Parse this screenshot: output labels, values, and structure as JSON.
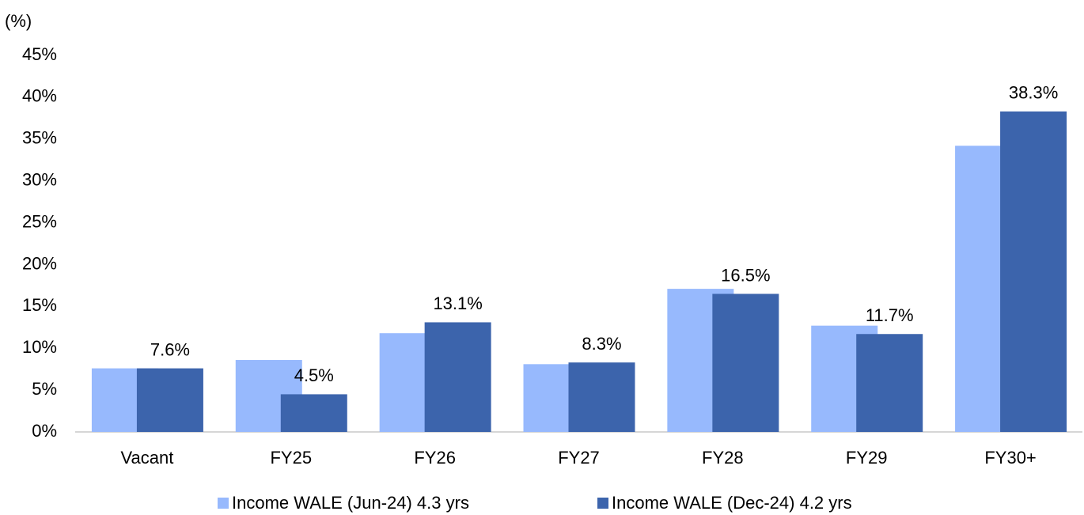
{
  "chart_data": {
    "type": "bar",
    "y_unit_label": "(%)",
    "categories": [
      "Vacant",
      "FY25",
      "FY26",
      "FY27",
      "FY28",
      "FY29",
      "FY30+"
    ],
    "series": [
      {
        "name": "Income WALE (Jun-24) 4.3 yrs",
        "color": "#97b9fd",
        "values": [
          7.6,
          8.6,
          11.8,
          8.1,
          17.1,
          12.7,
          34.2
        ]
      },
      {
        "name": "Income WALE (Dec-24) 4.2 yrs",
        "color": "#3c64ac",
        "values": [
          7.6,
          4.5,
          13.1,
          8.3,
          16.5,
          11.7,
          38.3
        ],
        "value_labels": [
          "7.6%",
          "4.5%",
          "13.1%",
          "8.3%",
          "16.5%",
          "11.7%",
          "38.3%"
        ]
      }
    ],
    "ylim": [
      0,
      45
    ],
    "yticks": [
      {
        "value": 0,
        "label": "0%"
      },
      {
        "value": 5,
        "label": "5%"
      },
      {
        "value": 10,
        "label": "10%"
      },
      {
        "value": 15,
        "label": "15%"
      },
      {
        "value": 20,
        "label": "20%"
      },
      {
        "value": 25,
        "label": "25%"
      },
      {
        "value": 30,
        "label": "30%"
      },
      {
        "value": 35,
        "label": "35%"
      },
      {
        "value": 40,
        "label": "40%"
      },
      {
        "value": 45,
        "label": "45%"
      }
    ],
    "legend": "bottom",
    "grid": false
  }
}
